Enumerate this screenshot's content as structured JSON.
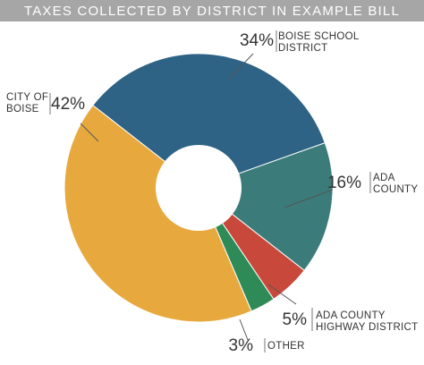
{
  "chart_data": {
    "type": "pie",
    "title": "TAXES COLLECTED BY DISTRICT IN EXAMPLE BILL",
    "slices": [
      {
        "percent_label": "34%",
        "label_lines": [
          "BOISE SCHOOL",
          "DISTRICT"
        ],
        "value": 34,
        "color": "#2e6385"
      },
      {
        "percent_label": "16%",
        "label_lines": [
          "ADA",
          "COUNTY"
        ],
        "value": 16,
        "color": "#3b7c7a"
      },
      {
        "percent_label": "5%",
        "label_lines": [
          "ADA COUNTY",
          "HIGHWAY DISTRICT"
        ],
        "value": 5,
        "color": "#c8493b"
      },
      {
        "percent_label": "3%",
        "label_lines": [
          "OTHER"
        ],
        "value": 3,
        "color": "#2e8a57"
      },
      {
        "percent_label": "42%",
        "label_lines": [
          "CITY OF",
          "BOISE"
        ],
        "value": 42,
        "color": "#e7a93e"
      }
    ]
  }
}
